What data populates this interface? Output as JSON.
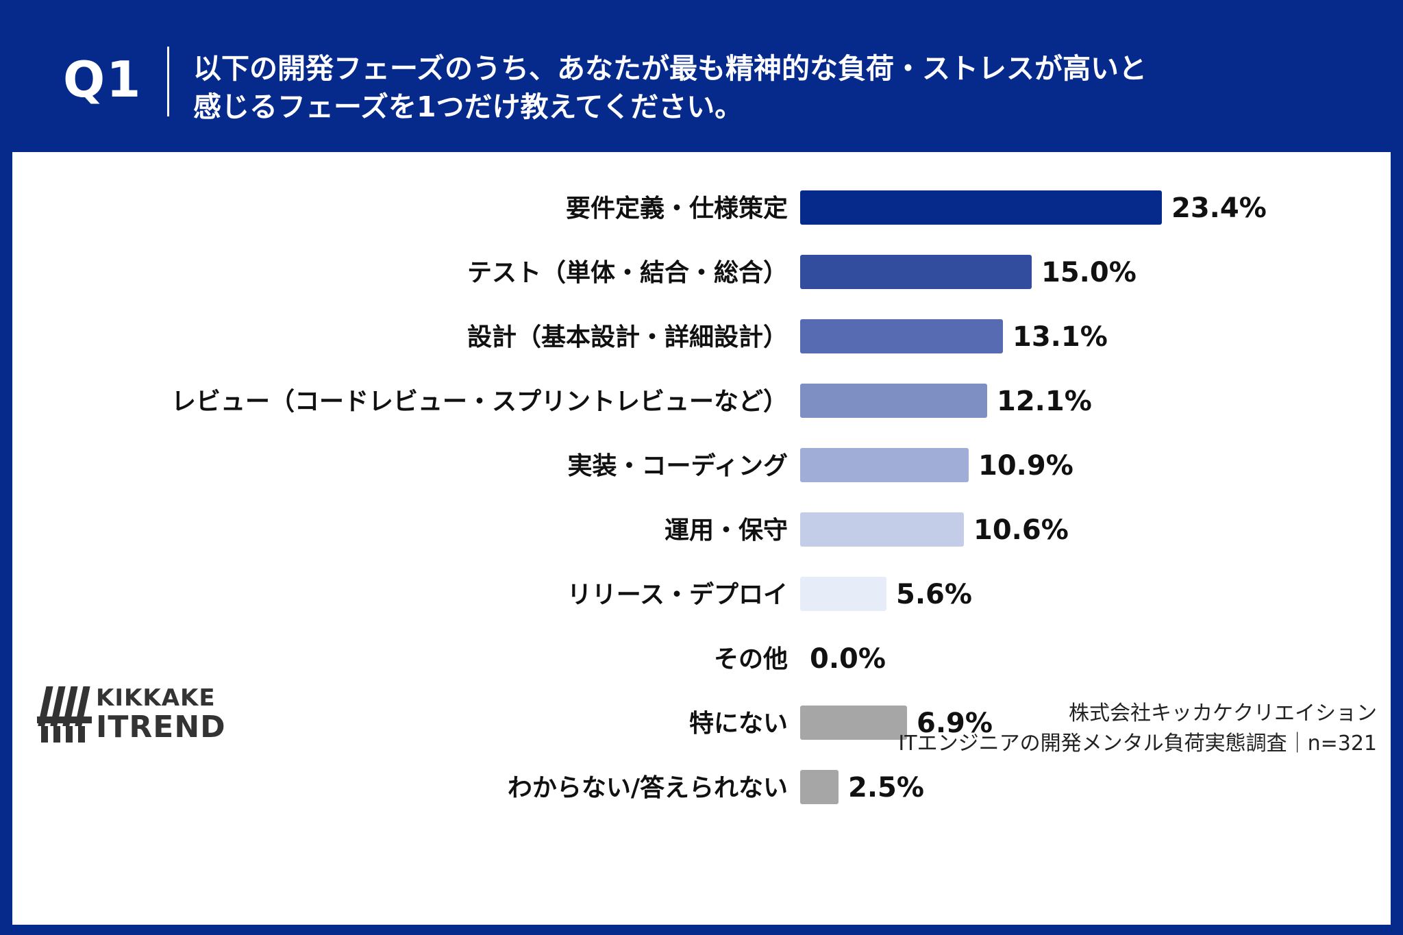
{
  "header": {
    "q_label": "Q1",
    "question_line1": "以下の開発フェーズのうち、あなたが最も精神的な負荷・ストレスが高いと",
    "question_line2": "感じるフェーズを1つだけ教えてください。"
  },
  "logo": {
    "line1": "KIKKAKE",
    "line2": "ITREND"
  },
  "footer": {
    "company": "株式会社キッカケクリエイション",
    "survey": "ITエンジニアの開発メンタル負荷実態調査｜n=321"
  },
  "chart_data": {
    "type": "bar",
    "orientation": "horizontal",
    "title": "",
    "xlabel": "",
    "ylabel": "",
    "xlim": [
      0,
      23.4
    ],
    "grid": false,
    "legend": "none",
    "value_suffix": "%",
    "categories": [
      "要件定義・仕様策定",
      "テスト（単体・結合・総合）",
      "設計（基本設計・詳細設計）",
      "レビュー（コードレビュー・スプリントレビューなど）",
      "実装・コーディング",
      "運用・保守",
      "リリース・デプロイ",
      "その他",
      "特にない",
      "わからない/答えられない"
    ],
    "values": [
      23.4,
      15.0,
      13.1,
      12.1,
      10.9,
      10.6,
      5.6,
      0.0,
      6.9,
      2.5
    ],
    "value_labels": [
      "23.4%",
      "15.0%",
      "13.1%",
      "12.1%",
      "10.9%",
      "10.6%",
      "5.6%",
      "0.0%",
      "6.9%",
      "2.5%"
    ],
    "colors": [
      "#062a8c",
      "#334d9e",
      "#566bb1",
      "#7e8fc4",
      "#a0add6",
      "#c4cde8",
      "#e6ecf8",
      "#e6ecf8",
      "#a6a6a6",
      "#a6a6a6"
    ]
  }
}
